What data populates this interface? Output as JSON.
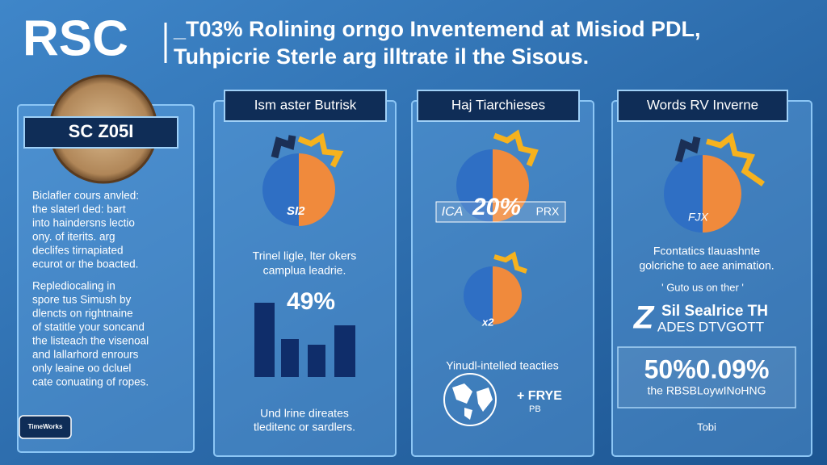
{
  "header": {
    "logo": "RSC",
    "title_lines": [
      "_T03% Rolining orngo Inventemend at Misiod PDL,",
      "Tuhpicrie Sterle arg illtrate il the Sisous."
    ]
  },
  "left_panel": {
    "badge": "SC Z05I",
    "paragraph_1": [
      "Biclafler cours anvled:",
      "the slaterl ded: bart",
      "into haindersns lectio",
      "ony. of iterits. arg",
      "declifes tirnapiated",
      "ecurot or the boacted."
    ],
    "paragraph_2": [
      "Replediocaling in",
      "spore tus Simush by",
      "dlencts on rightnaine",
      "of statitle your soncand",
      "the listeach the visenoal",
      "and lallarhord enrours",
      "only leaine oo dcluel",
      "cate conuating of ropes."
    ],
    "footer_badge": "TimeWorks"
  },
  "panel_1": {
    "heading": "Ism aster Butrisk",
    "pie_label": "SI2",
    "caption": [
      "Trinel ligle, lter okers",
      "camplua leadrie."
    ],
    "stat": "49%",
    "footer": [
      "Und lrine direates",
      "tleditenc or sardlers."
    ]
  },
  "panel_2": {
    "heading": "Haj Tiarchieses",
    "callout_left": "ICA",
    "callout_value": "20%",
    "callout_right": "PRX",
    "second_pie_label": "x2",
    "caption": "Yinudl-intelled teacties",
    "map_labels": [
      "+ FRYE",
      "PB"
    ]
  },
  "panel_3": {
    "heading": "Words RV Inverne",
    "pie_label": "FJX",
    "caption": [
      "Fcontatics tlauashnte",
      "golcriche to aee animation."
    ],
    "quote": "' Guto us on ther '",
    "logo_mark": "Z",
    "logo_lines": [
      "Sil Sealrice TH",
      "ADES DTVGOTT"
    ],
    "box_stat": "50%0.09%",
    "box_text": "the RBSBLoywINoHNG",
    "footer": "Tobi"
  }
}
